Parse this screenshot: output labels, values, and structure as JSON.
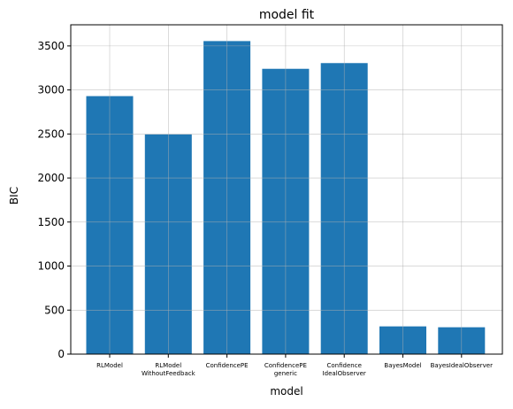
{
  "chart_data": {
    "type": "bar",
    "title": "model fit",
    "xlabel": "model",
    "ylabel": "BIC",
    "categories": [
      [
        "RLModel"
      ],
      [
        "RLModel",
        "WithoutFeedback"
      ],
      [
        "ConfidencePE"
      ],
      [
        "ConfidencePE",
        "generic"
      ],
      [
        "Confidence",
        "IdealObserver"
      ],
      [
        "BayesModel"
      ],
      [
        "BayesIdealObserver"
      ]
    ],
    "values": [
      2930,
      2495,
      3555,
      3240,
      3305,
      315,
      305
    ],
    "ylim": [
      0,
      3740
    ],
    "yticks": [
      0,
      500,
      1000,
      1500,
      2000,
      2500,
      3000,
      3500
    ],
    "grid": true,
    "bar_color": "#1f77b4"
  }
}
